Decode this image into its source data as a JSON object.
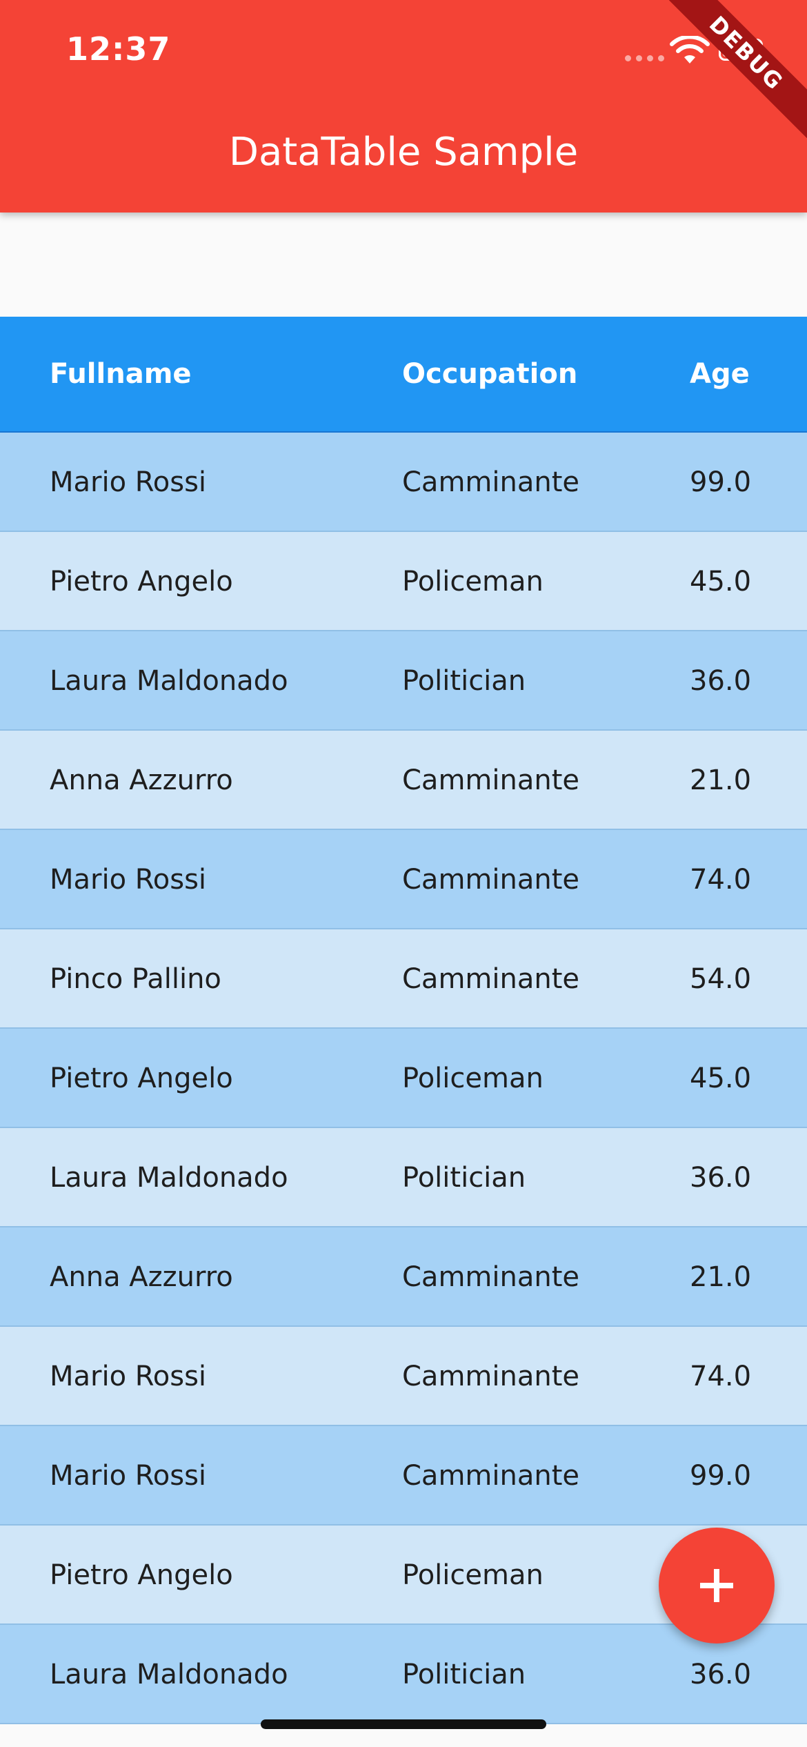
{
  "status_bar": {
    "time": "12:37",
    "icons": [
      "cellular-signal-icon",
      "wifi-icon",
      "battery-icon"
    ]
  },
  "app_bar": {
    "title": "DataTable Sample",
    "color": "#f44336"
  },
  "debug_banner": "DEBUG",
  "table": {
    "header_color": "#2196f3",
    "columns": [
      "Fullname",
      "Occupation",
      "Age"
    ],
    "rows": [
      {
        "fullname": "Mario Rossi",
        "occupation": "Camminante",
        "age": "99.0"
      },
      {
        "fullname": "Pietro Angelo",
        "occupation": "Policeman",
        "age": "45.0"
      },
      {
        "fullname": "Laura Maldonado",
        "occupation": "Politician",
        "age": "36.0"
      },
      {
        "fullname": "Anna Azzurro",
        "occupation": "Camminante",
        "age": "21.0"
      },
      {
        "fullname": "Mario Rossi",
        "occupation": "Camminante",
        "age": "74.0"
      },
      {
        "fullname": "Pinco Pallino",
        "occupation": "Camminante",
        "age": "54.0"
      },
      {
        "fullname": "Pietro Angelo",
        "occupation": "Policeman",
        "age": "45.0"
      },
      {
        "fullname": "Laura Maldonado",
        "occupation": "Politician",
        "age": "36.0"
      },
      {
        "fullname": "Anna Azzurro",
        "occupation": "Camminante",
        "age": "21.0"
      },
      {
        "fullname": "Mario Rossi",
        "occupation": "Camminante",
        "age": "74.0"
      },
      {
        "fullname": "Mario Rossi",
        "occupation": "Camminante",
        "age": "99.0"
      },
      {
        "fullname": "Pietro Angelo",
        "occupation": "Policeman",
        "age": ""
      },
      {
        "fullname": "Laura Maldonado",
        "occupation": "Politician",
        "age": "36.0"
      }
    ]
  },
  "fab": {
    "icon": "plus-icon",
    "color": "#f44336"
  }
}
